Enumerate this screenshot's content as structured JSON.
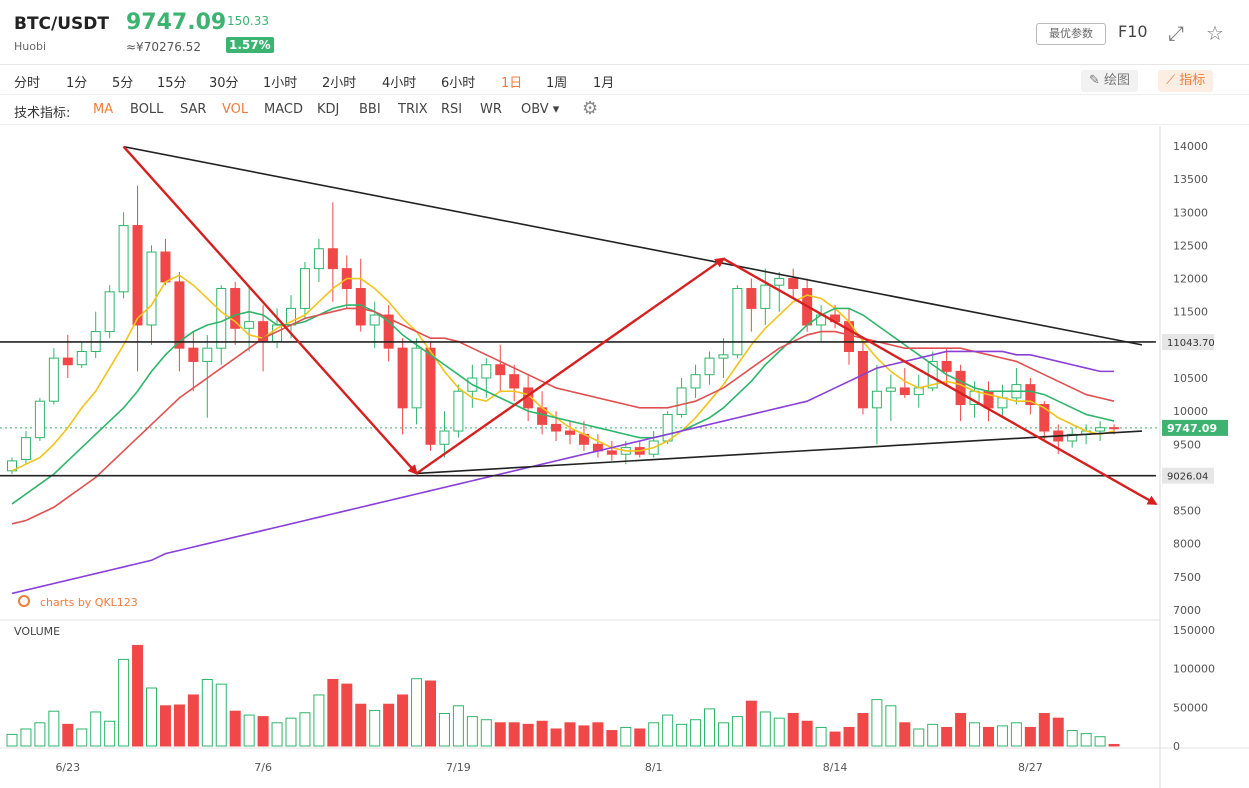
{
  "header": {
    "symbol": "BTC/USDT",
    "exchange": "Huobi",
    "price": "9747.09",
    "cny_price": "≈¥70276.52",
    "change": "150.33",
    "change_pct": "1.57%",
    "best_params": "最优参数",
    "f10": "F10"
  },
  "timeframes": [
    "分时",
    "1分",
    "5分",
    "15分",
    "30分",
    "1小时",
    "2小时",
    "4小时",
    "6小时",
    "1日",
    "1周",
    "1月"
  ],
  "active_timeframe": "1日",
  "tools": {
    "draw": "绘图",
    "indicator": "指标"
  },
  "indicators_label": "技术指标:",
  "indicators": [
    "MA",
    "BOLL",
    "SAR",
    "VOL",
    "MACD",
    "KDJ",
    "BBI",
    "TRIX",
    "RSI",
    "WR",
    "OBV"
  ],
  "active_indicators": [
    "MA",
    "VOL"
  ],
  "watermark": "charts by QKL123",
  "volume_label": "VOLUME",
  "colors": {
    "up": "#2fb56b",
    "down": "#f04848",
    "ma5": "#f2c31a",
    "ma10": "#2fb56b",
    "ma20": "#e05050",
    "ma60": "#8a3fd6",
    "price_tag": "#3cb371"
  },
  "chart_data": {
    "type": "candlestick",
    "x_ticks": [
      "6/23",
      "7/6",
      "7/19",
      "8/1",
      "8/14",
      "8/27"
    ],
    "y_ticks": [
      7000,
      7500,
      8000,
      8500,
      9000,
      9500,
      10000,
      10500,
      11000,
      11500,
      12000,
      12500,
      13000,
      13500,
      14000
    ],
    "ylim": [
      7000,
      14000
    ],
    "volume_ticks": [
      0,
      50000,
      100000,
      150000
    ],
    "volume_ylim": [
      0,
      150000
    ],
    "price_labels": [
      {
        "value": 11043.7,
        "text": "11043.70"
      },
      {
        "value": 9026.04,
        "text": "9026.04"
      },
      {
        "value": 9747.09,
        "text": "9747.09"
      }
    ],
    "candles": [
      [
        9100,
        9300,
        9050,
        9250,
        15000
      ],
      [
        9270,
        9700,
        9200,
        9600,
        22000
      ],
      [
        9600,
        10200,
        9550,
        10150,
        30000
      ],
      [
        10150,
        10950,
        10100,
        10800,
        45000
      ],
      [
        10800,
        11150,
        10500,
        10700,
        28000
      ],
      [
        10700,
        11050,
        10650,
        10900,
        22000
      ],
      [
        10900,
        11500,
        10800,
        11200,
        44000
      ],
      [
        11200,
        11900,
        11100,
        11800,
        32000
      ],
      [
        11800,
        13000,
        11700,
        12800,
        112000
      ],
      [
        12800,
        13400,
        10600,
        11300,
        130000
      ],
      [
        11300,
        12500,
        11000,
        12400,
        75000
      ],
      [
        12400,
        12600,
        11900,
        11950,
        52000
      ],
      [
        11950,
        12100,
        10600,
        10950,
        53000
      ],
      [
        10950,
        11200,
        10300,
        10750,
        66000
      ],
      [
        10750,
        11150,
        9900,
        10950,
        86000
      ],
      [
        10950,
        11900,
        10700,
        11850,
        80000
      ],
      [
        11850,
        11950,
        11000,
        11250,
        45000
      ],
      [
        11250,
        11900,
        10900,
        11350,
        40000
      ],
      [
        11350,
        11600,
        10600,
        11050,
        38000
      ],
      [
        11050,
        11550,
        10950,
        11300,
        30000
      ],
      [
        11300,
        11750,
        11100,
        11550,
        36000
      ],
      [
        11550,
        12250,
        11400,
        12150,
        43000
      ],
      [
        12150,
        12600,
        11950,
        12450,
        66000
      ],
      [
        12450,
        13150,
        11650,
        12150,
        86000
      ],
      [
        12150,
        12350,
        11550,
        11850,
        80000
      ],
      [
        11850,
        12300,
        11200,
        11300,
        54000
      ],
      [
        11300,
        11650,
        10950,
        11450,
        46000
      ],
      [
        11450,
        11600,
        10750,
        10950,
        54000
      ],
      [
        10950,
        11100,
        9650,
        10050,
        66000
      ],
      [
        10050,
        11100,
        9800,
        10950,
        87000
      ],
      [
        10950,
        11050,
        9400,
        9500,
        84000
      ],
      [
        9500,
        10000,
        9300,
        9700,
        42000
      ],
      [
        9700,
        10400,
        9600,
        10300,
        52000
      ],
      [
        10300,
        10700,
        10050,
        10500,
        38000
      ],
      [
        10500,
        10800,
        10200,
        10700,
        34000
      ],
      [
        10700,
        11000,
        10300,
        10550,
        30000
      ],
      [
        10550,
        10700,
        10150,
        10350,
        30000
      ],
      [
        10350,
        10550,
        9850,
        10050,
        28000
      ],
      [
        10050,
        10300,
        9650,
        9800,
        32000
      ],
      [
        9800,
        10000,
        9550,
        9700,
        22000
      ],
      [
        9700,
        9850,
        9500,
        9650,
        30000
      ],
      [
        9650,
        9850,
        9400,
        9500,
        26000
      ],
      [
        9500,
        9650,
        9300,
        9400,
        30000
      ],
      [
        9400,
        9550,
        9250,
        9350,
        20000
      ],
      [
        9350,
        9550,
        9200,
        9450,
        24000
      ],
      [
        9450,
        9550,
        9300,
        9350,
        22000
      ],
      [
        9350,
        9700,
        9300,
        9550,
        30000
      ],
      [
        9550,
        10000,
        9500,
        9950,
        40000
      ],
      [
        9950,
        10500,
        9900,
        10350,
        28000
      ],
      [
        10350,
        10700,
        10200,
        10550,
        34000
      ],
      [
        10550,
        10900,
        10400,
        10800,
        48000
      ],
      [
        10800,
        11100,
        10500,
        10850,
        30000
      ],
      [
        10850,
        11900,
        10800,
        11850,
        38000
      ],
      [
        11850,
        12000,
        11200,
        11550,
        58000
      ],
      [
        11550,
        12150,
        11300,
        11900,
        44000
      ],
      [
        11900,
        12100,
        11500,
        12000,
        36000
      ],
      [
        12000,
        12150,
        11700,
        11850,
        42000
      ],
      [
        11850,
        12000,
        11200,
        11300,
        32000
      ],
      [
        11300,
        11600,
        11050,
        11450,
        24000
      ],
      [
        11450,
        11600,
        11250,
        11350,
        18000
      ],
      [
        11350,
        11550,
        10700,
        10900,
        24000
      ],
      [
        10900,
        11100,
        9950,
        10050,
        42000
      ],
      [
        10050,
        10700,
        9500,
        10300,
        60000
      ],
      [
        10300,
        10550,
        9850,
        10350,
        52000
      ],
      [
        10350,
        10650,
        10200,
        10250,
        30000
      ],
      [
        10250,
        10550,
        10050,
        10350,
        22000
      ],
      [
        10350,
        10900,
        10300,
        10750,
        28000
      ],
      [
        10750,
        10950,
        10400,
        10600,
        24000
      ],
      [
        10600,
        10700,
        9850,
        10100,
        42000
      ],
      [
        10100,
        10450,
        9900,
        10300,
        30000
      ],
      [
        10300,
        10450,
        9850,
        10050,
        24000
      ],
      [
        10050,
        10400,
        9900,
        10200,
        26000
      ],
      [
        10200,
        10650,
        10100,
        10400,
        30000
      ],
      [
        10400,
        10500,
        9950,
        10100,
        24000
      ],
      [
        10100,
        10150,
        9550,
        9700,
        42000
      ],
      [
        9700,
        9800,
        9350,
        9550,
        36000
      ],
      [
        9550,
        9750,
        9450,
        9650,
        20000
      ],
      [
        9650,
        9800,
        9500,
        9700,
        16000
      ],
      [
        9700,
        9850,
        9550,
        9750,
        12000
      ],
      [
        9750,
        9800,
        9650,
        9747.09,
        2000
      ]
    ],
    "moving_averages": [
      {
        "name": "MA5",
        "color": "#f2c31a",
        "values": [
          9100,
          9200,
          9300,
          9500,
          9750,
          10050,
          10300,
          10650,
          11000,
          11400,
          11600,
          11950,
          12050,
          11900,
          11700,
          11500,
          11350,
          11150,
          11100,
          11250,
          11350,
          11450,
          11650,
          11850,
          12000,
          12000,
          11850,
          11650,
          11400,
          11200,
          10900,
          10600,
          10350,
          10200,
          10150,
          10300,
          10300,
          10250,
          10050,
          9900,
          9750,
          9650,
          9550,
          9450,
          9400,
          9400,
          9450,
          9550,
          9700,
          9900,
          10150,
          10400,
          10700,
          11000,
          11250,
          11450,
          11650,
          11750,
          11700,
          11550,
          11350,
          11050,
          10800,
          10600,
          10450,
          10350,
          10400,
          10450,
          10400,
          10300,
          10250,
          10200,
          10150,
          10150,
          10050,
          9900,
          9800,
          9700,
          9650,
          9700
        ]
      },
      {
        "name": "MA10",
        "color": "#2fb56b",
        "values": [
          8600,
          8750,
          8900,
          9050,
          9250,
          9450,
          9650,
          9850,
          10050,
          10300,
          10600,
          10850,
          11050,
          11200,
          11300,
          11350,
          11450,
          11500,
          11450,
          11300,
          11300,
          11350,
          11450,
          11550,
          11600,
          11600,
          11500,
          11350,
          11150,
          11000,
          10850,
          10700,
          10550,
          10400,
          10300,
          10200,
          10100,
          10000,
          9950,
          9900,
          9850,
          9800,
          9750,
          9700,
          9650,
          9600,
          9600,
          9650,
          9700,
          9800,
          9900,
          10050,
          10250,
          10450,
          10700,
          10900,
          11100,
          11300,
          11450,
          11550,
          11550,
          11450,
          11300,
          11150,
          11000,
          10850,
          10700,
          10550,
          10450,
          10350,
          10300,
          10300,
          10300,
          10300,
          10250,
          10150,
          10050,
          9950,
          9900,
          9850
        ]
      },
      {
        "name": "MA20",
        "color": "#e05050",
        "values": [
          8300,
          8350,
          8450,
          8550,
          8700,
          8850,
          9000,
          9200,
          9400,
          9600,
          9800,
          10000,
          10200,
          10350,
          10500,
          10650,
          10800,
          10950,
          11100,
          11200,
          11300,
          11400,
          11450,
          11500,
          11550,
          11550,
          11500,
          11400,
          11300,
          11200,
          11100,
          11100,
          11050,
          10950,
          10850,
          10750,
          10650,
          10550,
          10450,
          10350,
          10300,
          10250,
          10200,
          10150,
          10100,
          10050,
          10050,
          10050,
          10100,
          10150,
          10250,
          10350,
          10500,
          10650,
          10800,
          10950,
          11050,
          11150,
          11200,
          11200,
          11150,
          11100,
          11050,
          11000,
          10950,
          10950,
          10950,
          10950,
          10950,
          10900,
          10850,
          10800,
          10750,
          10650,
          10550,
          10450,
          10350,
          10250,
          10200,
          10150
        ]
      },
      {
        "name": "MA60",
        "color": "#8a3fd6",
        "values": [
          7250,
          7300,
          7350,
          7400,
          7450,
          7500,
          7550,
          7600,
          7650,
          7700,
          7750,
          7850,
          7900,
          7950,
          8000,
          8050,
          8100,
          8150,
          8200,
          8250,
          8300,
          8350,
          8400,
          8450,
          8500,
          8550,
          8600,
          8650,
          8700,
          8750,
          8800,
          8850,
          8900,
          8950,
          9000,
          9050,
          9100,
          9150,
          9200,
          9250,
          9300,
          9350,
          9400,
          9450,
          9500,
          9550,
          9600,
          9650,
          9700,
          9750,
          9800,
          9850,
          9900,
          9950,
          10000,
          10050,
          10100,
          10150,
          10250,
          10350,
          10450,
          10550,
          10650,
          10700,
          10750,
          10800,
          10850,
          10900,
          10900,
          10900,
          10900,
          10900,
          10850,
          10850,
          10800,
          10750,
          10700,
          10650,
          10600,
          10600
        ]
      }
    ],
    "trend_lines": [
      {
        "color": "#222",
        "points": [
          [
            8,
            13990
          ],
          [
            81,
            11000
          ]
        ]
      },
      {
        "color": "#222",
        "points": [
          [
            29,
            9060
          ],
          [
            81,
            9700
          ]
        ]
      },
      {
        "color": "#222",
        "points": [
          [
            -8,
            11043.7
          ],
          [
            82,
            11043.7
          ]
        ]
      },
      {
        "color": "#222",
        "points": [
          [
            -8,
            9026.04
          ],
          [
            82,
            9026.04
          ]
        ]
      },
      {
        "color": "#d62020",
        "arrow": true,
        "points": [
          [
            8,
            13990
          ],
          [
            29,
            9060
          ]
        ]
      },
      {
        "color": "#d62020",
        "arrow": true,
        "points": [
          [
            29,
            9060
          ],
          [
            51,
            12300
          ]
        ]
      },
      {
        "color": "#d62020",
        "arrow": true,
        "points": [
          [
            51,
            12300
          ],
          [
            82,
            8600
          ]
        ]
      }
    ]
  }
}
